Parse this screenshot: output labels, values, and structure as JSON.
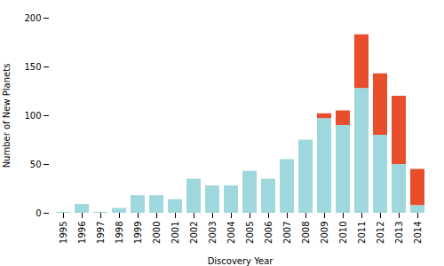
{
  "chart_data": {
    "type": "bar",
    "stacked": true,
    "categories": [
      "1995",
      "1996",
      "1997",
      "1998",
      "1999",
      "2000",
      "2001",
      "2002",
      "2003",
      "2004",
      "2005",
      "2006",
      "2007",
      "2008",
      "2009",
      "2010",
      "2011",
      "2012",
      "2013",
      "2014"
    ],
    "series": [
      {
        "color": "#9fd8dc",
        "values": [
          1,
          9,
          1,
          5,
          18,
          18,
          14,
          35,
          28,
          28,
          43,
          35,
          55,
          75,
          97,
          90,
          128,
          80,
          50,
          8
        ]
      },
      {
        "color": "#e84e2c",
        "values": [
          0,
          0,
          0,
          0,
          0,
          0,
          0,
          0,
          0,
          0,
          0,
          0,
          0,
          0,
          5,
          15,
          55,
          63,
          70,
          37
        ]
      }
    ],
    "xlabel": "Discovery Year",
    "ylabel": "Number of New Planets",
    "ylim": [
      0,
      200
    ],
    "yticks": [
      0,
      50,
      100,
      150,
      200
    ],
    "grid": false
  }
}
